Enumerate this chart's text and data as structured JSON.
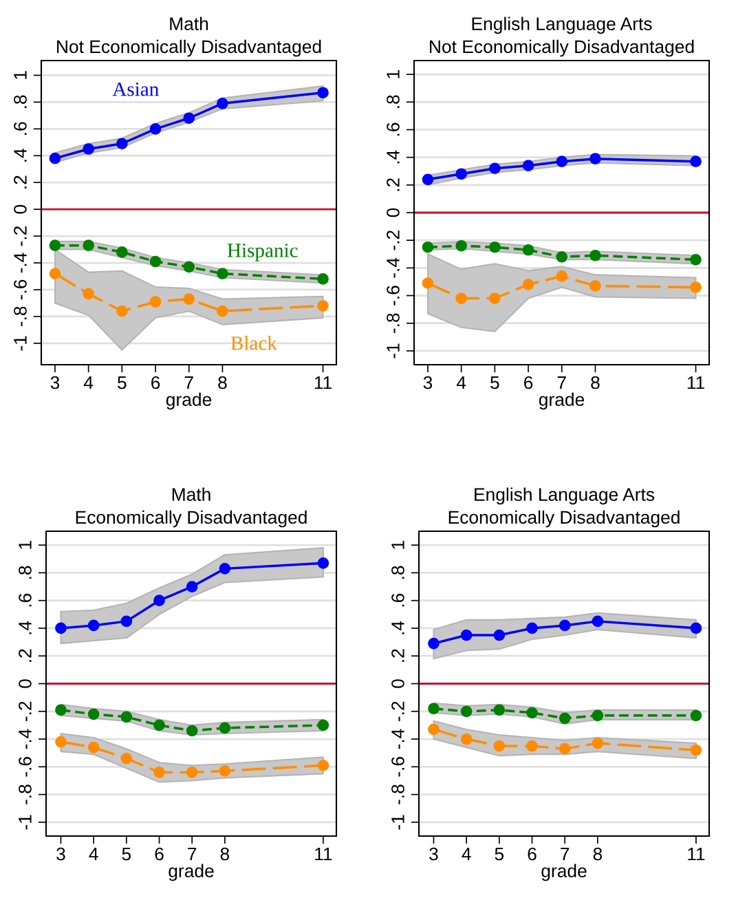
{
  "chart_data": [
    {
      "type": "line",
      "title": "Math\nNot Economically Disadvantaged",
      "xlabel": "grade",
      "x": [
        3,
        4,
        5,
        6,
        7,
        8,
        11
      ],
      "xlim": [
        2.59,
        11.4
      ],
      "xticks": [
        3,
        4,
        5,
        6,
        7,
        8,
        11
      ],
      "ylim": [
        -1.16,
        1.11
      ],
      "grid": "y",
      "marker": "circle",
      "ref_lines": [
        {
          "axis": "y",
          "value": 0,
          "color": "#c8102e"
        }
      ],
      "yticks": [
        {
          "value": -1,
          "label": "-1"
        },
        {
          "value": -0.8,
          "label": "-.8"
        },
        {
          "value": -0.6,
          "label": "-.6"
        },
        {
          "value": -0.4,
          "label": "-.4"
        },
        {
          "value": -0.2,
          "label": "-.2"
        },
        0,
        {
          "value": 0.2,
          "label": ".2"
        },
        {
          "value": 0.4,
          "label": ".4"
        },
        {
          "value": 0.6,
          "label": ".6"
        },
        {
          "value": 0.8,
          "label": ".8"
        },
        1
      ],
      "series": [
        {
          "name": "Asian",
          "color": "#0000ff",
          "line_style": "solid",
          "values": [
            0.38,
            0.45,
            0.49,
            0.6,
            0.68,
            0.79,
            0.87
          ],
          "lower": [
            0.35,
            0.42,
            0.46,
            0.57,
            0.65,
            0.75,
            0.81
          ],
          "upper": [
            0.42,
            0.49,
            0.53,
            0.64,
            0.72,
            0.83,
            0.92
          ]
        },
        {
          "name": "Hispanic",
          "color": "#008000",
          "line_style": "dashed",
          "values": [
            -0.27,
            -0.27,
            -0.32,
            -0.39,
            -0.43,
            -0.48,
            -0.52
          ],
          "lower": [
            -0.3,
            -0.3,
            -0.36,
            -0.42,
            -0.46,
            -0.51,
            -0.55
          ],
          "upper": [
            -0.24,
            -0.24,
            -0.29,
            -0.36,
            -0.4,
            -0.45,
            -0.49
          ]
        },
        {
          "name": "Black",
          "color": "#ff8c00",
          "line_style": "longdash",
          "values": [
            -0.48,
            -0.63,
            -0.76,
            -0.69,
            -0.67,
            -0.76,
            -0.72
          ],
          "lower": [
            -0.7,
            -0.79,
            -1.05,
            -0.81,
            -0.76,
            -0.86,
            -0.81
          ],
          "upper": [
            -0.3,
            -0.47,
            -0.46,
            -0.58,
            -0.59,
            -0.67,
            -0.65
          ]
        }
      ]
    },
    {
      "type": "line",
      "title": "English Language Arts\nNot Economically Disadvantaged",
      "xlabel": "grade",
      "x": [
        3,
        4,
        5,
        6,
        7,
        8,
        11
      ],
      "xlim": [
        2.59,
        11.4
      ],
      "xticks": [
        3,
        4,
        5,
        6,
        7,
        8,
        11
      ],
      "ylim": [
        -1.1,
        1.1
      ],
      "yticks": [
        {
          "value": -1,
          "label": "-1"
        },
        {
          "value": -0.8,
          "label": "-.8"
        },
        {
          "value": -0.6,
          "label": "-.6"
        },
        {
          "value": -0.4,
          "label": "-.4"
        },
        {
          "value": -0.2,
          "label": "-.2"
        },
        0,
        {
          "value": 0.2,
          "label": ".2"
        },
        {
          "value": 0.4,
          "label": ".4"
        },
        {
          "value": 0.6,
          "label": ".6"
        },
        {
          "value": 0.8,
          "label": ".8"
        },
        1
      ],
      "grid": "y",
      "marker": "circle",
      "ref_lines": [
        {
          "axis": "y",
          "value": 0,
          "color": "#c8102e"
        }
      ],
      "series": [
        {
          "color": "#0000ff",
          "line_style": "solid",
          "values": [
            0.24,
            0.28,
            0.32,
            0.34,
            0.37,
            0.39,
            0.37
          ],
          "lower": [
            0.2,
            0.25,
            0.29,
            0.31,
            0.34,
            0.36,
            0.34
          ],
          "upper": [
            0.27,
            0.31,
            0.35,
            0.37,
            0.4,
            0.42,
            0.41
          ]
        },
        {
          "color": "#008000",
          "line_style": "dashed",
          "values": [
            -0.25,
            -0.24,
            -0.25,
            -0.27,
            -0.32,
            -0.31,
            -0.34
          ],
          "lower": [
            -0.27,
            -0.26,
            -0.28,
            -0.3,
            -0.34,
            -0.34,
            -0.37
          ],
          "upper": [
            -0.22,
            -0.21,
            -0.22,
            -0.24,
            -0.29,
            -0.28,
            -0.31
          ]
        },
        {
          "color": "#ff8c00",
          "line_style": "longdash",
          "values": [
            -0.51,
            -0.62,
            -0.62,
            -0.52,
            -0.46,
            -0.53,
            -0.54
          ],
          "lower": [
            -0.73,
            -0.83,
            -0.86,
            -0.62,
            -0.54,
            -0.61,
            -0.62
          ],
          "upper": [
            -0.3,
            -0.41,
            -0.37,
            -0.42,
            -0.39,
            -0.45,
            -0.47
          ]
        }
      ]
    },
    {
      "type": "line",
      "title": "Math\nEconomically Disadvantaged",
      "xlabel": "grade",
      "x": [
        3,
        4,
        5,
        6,
        7,
        8,
        11
      ],
      "xlim": [
        2.55,
        11.4
      ],
      "xticks": [
        3,
        4,
        5,
        6,
        7,
        8,
        11
      ],
      "ylim": [
        -1.1,
        1.1
      ],
      "yticks": [
        {
          "value": -1,
          "label": "-1"
        },
        {
          "value": -0.8,
          "label": "-.8"
        },
        {
          "value": -0.6,
          "label": "-.6"
        },
        {
          "value": -0.4,
          "label": "-.4"
        },
        {
          "value": -0.2,
          "label": "-.2"
        },
        0,
        {
          "value": 0.2,
          "label": ".2"
        },
        {
          "value": 0.4,
          "label": ".4"
        },
        {
          "value": 0.6,
          "label": ".6"
        },
        {
          "value": 0.8,
          "label": ".8"
        },
        1
      ],
      "grid": "y",
      "marker": "circle",
      "ref_lines": [
        {
          "axis": "y",
          "value": 0,
          "color": "#c8102e"
        }
      ],
      "series": [
        {
          "color": "#0000ff",
          "line_style": "solid",
          "values": [
            0.4,
            0.42,
            0.45,
            0.6,
            0.7,
            0.83,
            0.87
          ],
          "lower": [
            0.29,
            0.31,
            0.33,
            0.5,
            0.63,
            0.73,
            0.77
          ],
          "upper": [
            0.52,
            0.53,
            0.58,
            0.69,
            0.79,
            0.93,
            0.98
          ]
        },
        {
          "color": "#008000",
          "line_style": "dashed",
          "values": [
            -0.19,
            -0.22,
            -0.24,
            -0.3,
            -0.34,
            -0.32,
            -0.3
          ],
          "lower": [
            -0.23,
            -0.25,
            -0.27,
            -0.34,
            -0.37,
            -0.36,
            -0.34
          ],
          "upper": [
            -0.15,
            -0.18,
            -0.2,
            -0.26,
            -0.3,
            -0.28,
            -0.26
          ]
        },
        {
          "color": "#ff8c00",
          "line_style": "longdash",
          "values": [
            -0.42,
            -0.46,
            -0.54,
            -0.64,
            -0.64,
            -0.63,
            -0.59
          ],
          "lower": [
            -0.49,
            -0.51,
            -0.61,
            -0.71,
            -0.7,
            -0.68,
            -0.65
          ],
          "upper": [
            -0.36,
            -0.39,
            -0.47,
            -0.57,
            -0.59,
            -0.58,
            -0.53
          ]
        }
      ]
    },
    {
      "type": "line",
      "title": "English Language Arts\nEconomically Disadvantaged",
      "xlabel": "grade",
      "x": [
        3,
        4,
        5,
        6,
        7,
        8,
        11
      ],
      "xlim": [
        2.55,
        11.4
      ],
      "xticks": [
        3,
        4,
        5,
        6,
        7,
        8,
        11
      ],
      "ylim": [
        -1.1,
        1.1
      ],
      "yticks": [
        {
          "value": -1,
          "label": "-1"
        },
        {
          "value": -0.8,
          "label": "-.8"
        },
        {
          "value": -0.6,
          "label": "-.6"
        },
        {
          "value": -0.4,
          "label": "-.4"
        },
        {
          "value": -0.2,
          "label": "-.2"
        },
        0,
        {
          "value": 0.2,
          "label": ".2"
        },
        {
          "value": 0.4,
          "label": ".4"
        },
        {
          "value": 0.6,
          "label": ".6"
        },
        {
          "value": 0.8,
          "label": ".8"
        },
        1
      ],
      "grid": "y",
      "marker": "circle",
      "ref_lines": [
        {
          "axis": "y",
          "value": 0,
          "color": "#c8102e"
        }
      ],
      "series": [
        {
          "color": "#0000ff",
          "line_style": "solid",
          "values": [
            0.29,
            0.35,
            0.35,
            0.4,
            0.42,
            0.45,
            0.4
          ],
          "lower": [
            0.18,
            0.24,
            0.25,
            0.32,
            0.35,
            0.39,
            0.33
          ],
          "upper": [
            0.39,
            0.46,
            0.46,
            0.47,
            0.48,
            0.51,
            0.46
          ]
        },
        {
          "color": "#008000",
          "line_style": "dashed",
          "values": [
            -0.18,
            -0.2,
            -0.19,
            -0.21,
            -0.25,
            -0.23,
            -0.23
          ],
          "lower": [
            -0.21,
            -0.23,
            -0.22,
            -0.24,
            -0.29,
            -0.26,
            -0.26
          ],
          "upper": [
            -0.14,
            -0.16,
            -0.15,
            -0.17,
            -0.21,
            -0.19,
            -0.19
          ]
        },
        {
          "color": "#ff8c00",
          "line_style": "longdash",
          "values": [
            -0.33,
            -0.4,
            -0.45,
            -0.45,
            -0.47,
            -0.43,
            -0.48
          ],
          "lower": [
            -0.4,
            -0.46,
            -0.52,
            -0.51,
            -0.51,
            -0.49,
            -0.54
          ],
          "upper": [
            -0.27,
            -0.33,
            -0.37,
            -0.39,
            -0.41,
            -0.39,
            -0.43
          ]
        }
      ]
    }
  ]
}
